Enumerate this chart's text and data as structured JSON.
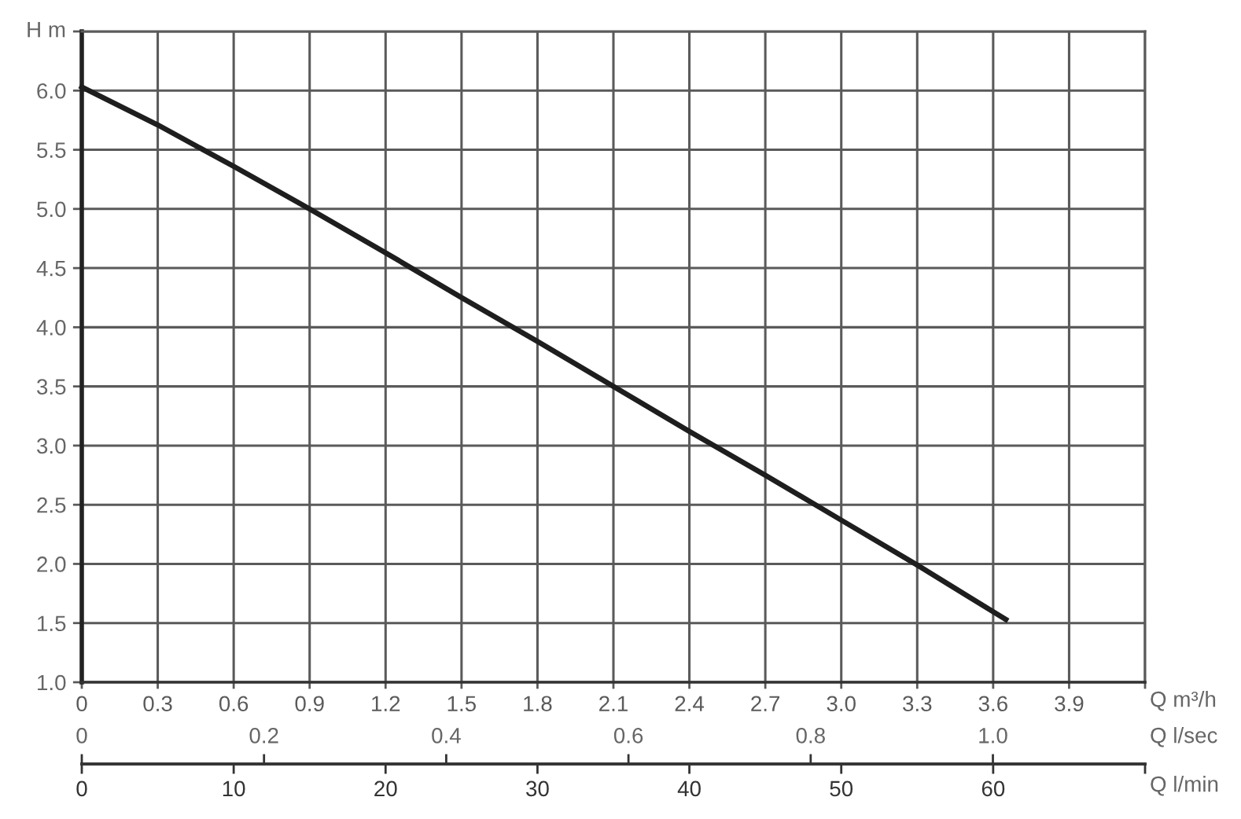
{
  "chart_data": [
    {
      "type": "line",
      "xlabel": "Q m³/h",
      "x2label": "Q l/sec",
      "ylabel": "H m",
      "x": [
        0,
        0.3,
        0.6,
        0.9,
        1.2,
        1.5,
        1.8,
        2.1,
        2.4,
        2.7,
        3.0,
        3.3,
        3.65
      ],
      "series": [
        {
          "color": "#1e1e1e",
          "values": [
            6.03,
            5.71,
            5.36,
            5.0,
            4.63,
            4.25,
            3.88,
            3.5,
            3.12,
            2.75,
            2.37,
            1.99,
            1.53
          ]
        }
      ],
      "xlim": [
        0,
        4.2
      ],
      "xticks": [
        0,
        0.3,
        0.6,
        0.9,
        1.2,
        1.5,
        1.8,
        2.1,
        2.4,
        2.7,
        {
          "value": 3.0,
          "label": "3.0"
        },
        3.3,
        3.6,
        3.9,
        {
          "value": 4.2,
          "label": null
        }
      ],
      "ylim": [
        1.0,
        6.5
      ],
      "yticks": [
        {
          "value": 1.0,
          "label": "1.0"
        },
        1.5,
        {
          "value": 2.0,
          "label": "2.0"
        },
        2.5,
        {
          "value": 3.0,
          "label": "3.0"
        },
        3.5,
        {
          "value": 4.0,
          "label": "4.0"
        },
        4.5,
        {
          "value": 5.0,
          "label": "5.0"
        },
        5.5,
        {
          "value": 6.0,
          "label": "6.0"
        },
        {
          "value": 6.5,
          "label": null
        }
      ],
      "x2lim": [
        0,
        1.167
      ],
      "x2ticks": [
        0,
        0.2,
        0.4,
        0.6,
        0.8,
        {
          "value": 1.0,
          "label": "1.0"
        }
      ],
      "grid": true,
      "line_style": "solid"
    },
    {
      "type": "line",
      "xlabel": "Q l/min",
      "tick_labels": "x",
      "xlim": [
        0,
        70
      ],
      "xticks": [
        0,
        10,
        20,
        30,
        40,
        50,
        60,
        {
          "value": 70,
          "label": null
        }
      ],
      "ylim": [
        1.0,
        6.5
      ]
    }
  ]
}
